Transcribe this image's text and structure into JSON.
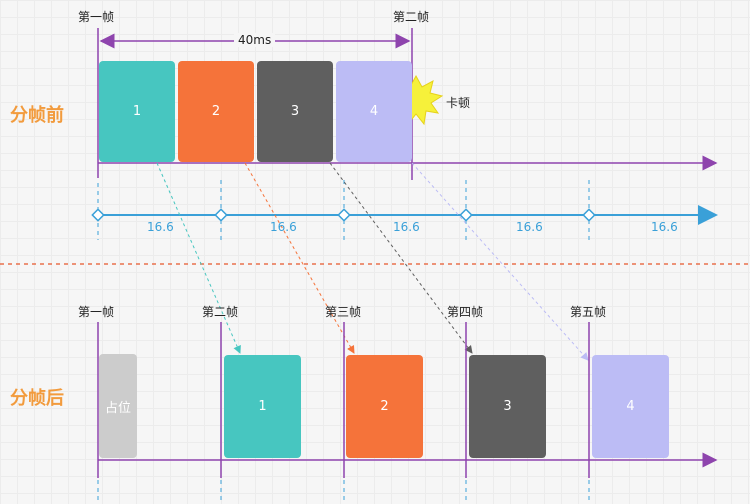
{
  "before": {
    "section_title": "分帧前",
    "frame_start_label": "第一帧",
    "frame_end_label": "第二帧",
    "duration_label": "40ms",
    "stall_label": "卡顿",
    "blocks": [
      {
        "label": "1",
        "color": "#47c6c0"
      },
      {
        "label": "2",
        "color": "#f5733a"
      },
      {
        "label": "3",
        "color": "#5f5f5f"
      },
      {
        "label": "4",
        "color": "#bcbcf5"
      }
    ],
    "ticks": [
      "16.6",
      "16.6",
      "16.6",
      "16.6",
      "16.6"
    ]
  },
  "after": {
    "section_title": "分帧后",
    "frame_labels": [
      "第一帧",
      "第二帧",
      "第三帧",
      "第四帧",
      "第五帧"
    ],
    "placeholder_label": "占位",
    "placeholder_color": "#cccccc",
    "blocks": [
      {
        "label": "1",
        "color": "#47c6c0"
      },
      {
        "label": "2",
        "color": "#f5733a"
      },
      {
        "label": "3",
        "color": "#5f5f5f"
      },
      {
        "label": "4",
        "color": "#bcbcf5"
      }
    ]
  },
  "colors": {
    "timeline": "#8e44ad",
    "tick_axis": "#3aa0d8",
    "divider": "#e8704d",
    "title": "#f29b3d",
    "burst": "#f6f13a"
  }
}
